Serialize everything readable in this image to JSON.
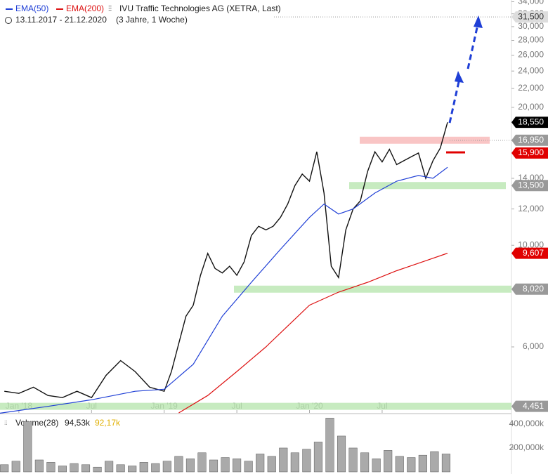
{
  "chart_data": [
    {
      "type": "line",
      "title": "IVU Traffic Technologies AG (XETRA, Last)",
      "subtitle": "13.11.2017 - 21.12.2020",
      "period": "(3 Jahre, 1 Woche)",
      "log_scale": true,
      "xlim": [
        2017.87,
        2021.39
      ],
      "xticks": [
        {
          "value": 2018,
          "label": "Jan '18"
        },
        {
          "value": 2018.5,
          "label": "Jul"
        },
        {
          "value": 2019,
          "label": "Jan '19"
        },
        {
          "value": 2019.5,
          "label": "Jul"
        },
        {
          "value": 2020,
          "label": "Jan '20"
        },
        {
          "value": 2020.5,
          "label": "Jul"
        }
      ],
      "ylim": [
        4306,
        34300
      ],
      "yticks": [
        {
          "value": 6000,
          "label": "6,000"
        },
        {
          "value": 10000,
          "label": "10,000"
        },
        {
          "value": 12000,
          "label": "12,000"
        },
        {
          "value": 14000,
          "label": "14,000"
        },
        {
          "value": 20000,
          "label": "20,000"
        },
        {
          "value": 22000,
          "label": "22,000"
        },
        {
          "value": 24000,
          "label": "24,000"
        },
        {
          "value": 26000,
          "label": "26,000"
        },
        {
          "value": 28000,
          "label": "28,000"
        },
        {
          "value": 30000,
          "label": "30,000"
        },
        {
          "value": 32000,
          "label": "32,000"
        },
        {
          "value": 34000,
          "label": "34,000"
        }
      ],
      "series": [
        {
          "name": "IVU Traffic Technologies AG (XETRA, Last)",
          "color": "#111111",
          "x": [
            2017.9,
            2018.0,
            2018.1,
            2018.2,
            2018.3,
            2018.4,
            2018.5,
            2018.6,
            2018.7,
            2018.8,
            2018.9,
            2019.0,
            2019.05,
            2019.1,
            2019.15,
            2019.2,
            2019.25,
            2019.3,
            2019.35,
            2019.4,
            2019.45,
            2019.5,
            2019.55,
            2019.6,
            2019.65,
            2019.7,
            2019.75,
            2019.8,
            2019.85,
            2019.9,
            2019.95,
            2020.0,
            2020.05,
            2020.1,
            2020.15,
            2020.2,
            2020.25,
            2020.3,
            2020.35,
            2020.4,
            2020.45,
            2020.5,
            2020.55,
            2020.6,
            2020.65,
            2020.7,
            2020.75,
            2020.8,
            2020.85,
            2020.9,
            2020.95
          ],
          "values": [
            4800,
            4750,
            4900,
            4700,
            4650,
            4800,
            4650,
            5200,
            5600,
            5300,
            4900,
            4800,
            5300,
            6100,
            7000,
            7400,
            8600,
            9600,
            8900,
            8700,
            9000,
            8600,
            9200,
            10500,
            11000,
            10800,
            11000,
            11500,
            12300,
            13500,
            14300,
            13800,
            16000,
            13000,
            9000,
            8500,
            10800,
            12000,
            12500,
            14500,
            16000,
            15200,
            16200,
            15000,
            15300,
            15600,
            15900,
            14000,
            15300,
            16300,
            18550
          ]
        },
        {
          "name": "EMA(50)",
          "color": "#1f3fd6",
          "x": [
            2017.87,
            2018.2,
            2018.5,
            2018.8,
            2019.0,
            2019.2,
            2019.4,
            2019.6,
            2019.8,
            2020.0,
            2020.1,
            2020.2,
            2020.3,
            2020.45,
            2020.6,
            2020.75,
            2020.85,
            2020.95
          ],
          "values": [
            4300,
            4450,
            4600,
            4800,
            4850,
            5500,
            7000,
            8300,
            9800,
            11500,
            12300,
            11700,
            12000,
            13000,
            13800,
            14200,
            14000,
            14800
          ]
        },
        {
          "name": "EMA(200)",
          "color": "#dd1111",
          "x": [
            2019.1,
            2019.3,
            2019.5,
            2019.7,
            2019.9,
            2020.0,
            2020.2,
            2020.4,
            2020.6,
            2020.8,
            2020.95
          ],
          "values": [
            4306,
            4700,
            5300,
            6000,
            6900,
            7400,
            7900,
            8300,
            8800,
            9250,
            9607
          ]
        }
      ],
      "price_markers": [
        {
          "value": 31500,
          "label": "31,500",
          "color": "#dddddd"
        },
        {
          "value": 18550,
          "label": "18,550",
          "color": "#000000"
        },
        {
          "value": 16950,
          "label": "16,950",
          "color": "#999999"
        },
        {
          "value": 15900,
          "label": "15,900",
          "color": "#e00000"
        },
        {
          "value": 13500,
          "label": "13,500",
          "color": "#999999"
        },
        {
          "value": 9607,
          "label": "9,607",
          "color": "#e00000"
        },
        {
          "value": 8020,
          "label": "8,020",
          "color": "#999999"
        },
        {
          "value": 4451,
          "label": "4,451",
          "color": "#999999"
        }
      ]
    },
    {
      "type": "bar",
      "title": "Volume(28)",
      "value_now": "94,53k",
      "value_avg": "92,17k",
      "color": "#aaaaaa",
      "xlim": [
        2017.87,
        2021.39
      ],
      "ylim": [
        0,
        470000
      ],
      "yticks": [
        {
          "value": 200000,
          "label": "200,000k"
        },
        {
          "value": 400000,
          "label": "400,000k"
        }
      ],
      "x": [
        2017.9,
        2017.98,
        2018.06,
        2018.14,
        2018.22,
        2018.3,
        2018.38,
        2018.46,
        2018.54,
        2018.62,
        2018.7,
        2018.78,
        2018.86,
        2018.94,
        2019.02,
        2019.1,
        2019.18,
        2019.26,
        2019.34,
        2019.42,
        2019.5,
        2019.58,
        2019.66,
        2019.74,
        2019.82,
        2019.9,
        2019.98,
        2020.06,
        2020.14,
        2020.22,
        2020.3,
        2020.38,
        2020.46,
        2020.54,
        2020.62,
        2020.7,
        2020.78,
        2020.86,
        2020.94
      ],
      "values": [
        60000,
        90000,
        420000,
        100000,
        80000,
        50000,
        70000,
        60000,
        40000,
        90000,
        60000,
        50000,
        80000,
        70000,
        90000,
        130000,
        110000,
        160000,
        100000,
        120000,
        110000,
        90000,
        150000,
        130000,
        200000,
        160000,
        190000,
        250000,
        450000,
        300000,
        200000,
        160000,
        110000,
        180000,
        130000,
        120000,
        140000,
        170000,
        150000
      ]
    }
  ]
}
